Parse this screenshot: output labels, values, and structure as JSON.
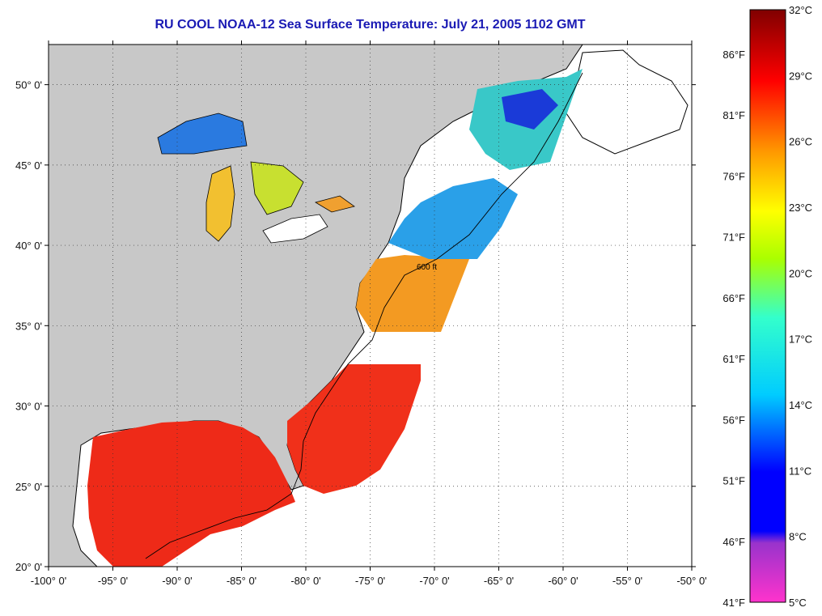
{
  "title": "RU COOL  NOAA-12  Sea Surface Temperature:  July 21, 2005 1102 GMT",
  "map": {
    "lon_range": [
      -100,
      -50
    ],
    "lat_range": [
      20,
      52.5
    ],
    "lon_ticks": [
      "-100° 0'",
      "-95° 0'",
      "-90° 0'",
      "-85° 0'",
      "-80° 0'",
      "-75° 0'",
      "-70° 0'",
      "-65° 0'",
      "-60° 0'",
      "-55° 0'",
      "-50° 0'"
    ],
    "lat_ticks": [
      "50° 0'",
      "45° 0'",
      "40° 0'",
      "35° 0'",
      "30° 0'",
      "25° 0'",
      "20° 0'"
    ],
    "contour_label": "600 ft",
    "grid": "dotted",
    "colors": {
      "land": "#c8c8c8",
      "no_data": "#ffffff",
      "coast": "#000000"
    }
  },
  "colorbar": {
    "celsius_labels": [
      "32°C",
      "29°C",
      "26°C",
      "23°C",
      "20°C",
      "17°C",
      "14°C",
      "11°C",
      "8°C",
      "5°C"
    ],
    "fahrenheit_labels": [
      "86°F",
      "81°F",
      "76°F",
      "71°F",
      "66°F",
      "61°F",
      "56°F",
      "51°F",
      "46°F",
      "41°F"
    ],
    "range_celsius": [
      5,
      32
    ],
    "stops": [
      "#ff33cc",
      "#9933cc",
      "#0000ff",
      "#00ccff",
      "#33ffcc",
      "#aaff00",
      "#ffff00",
      "#ff9900",
      "#ff0000",
      "#800000"
    ]
  }
}
